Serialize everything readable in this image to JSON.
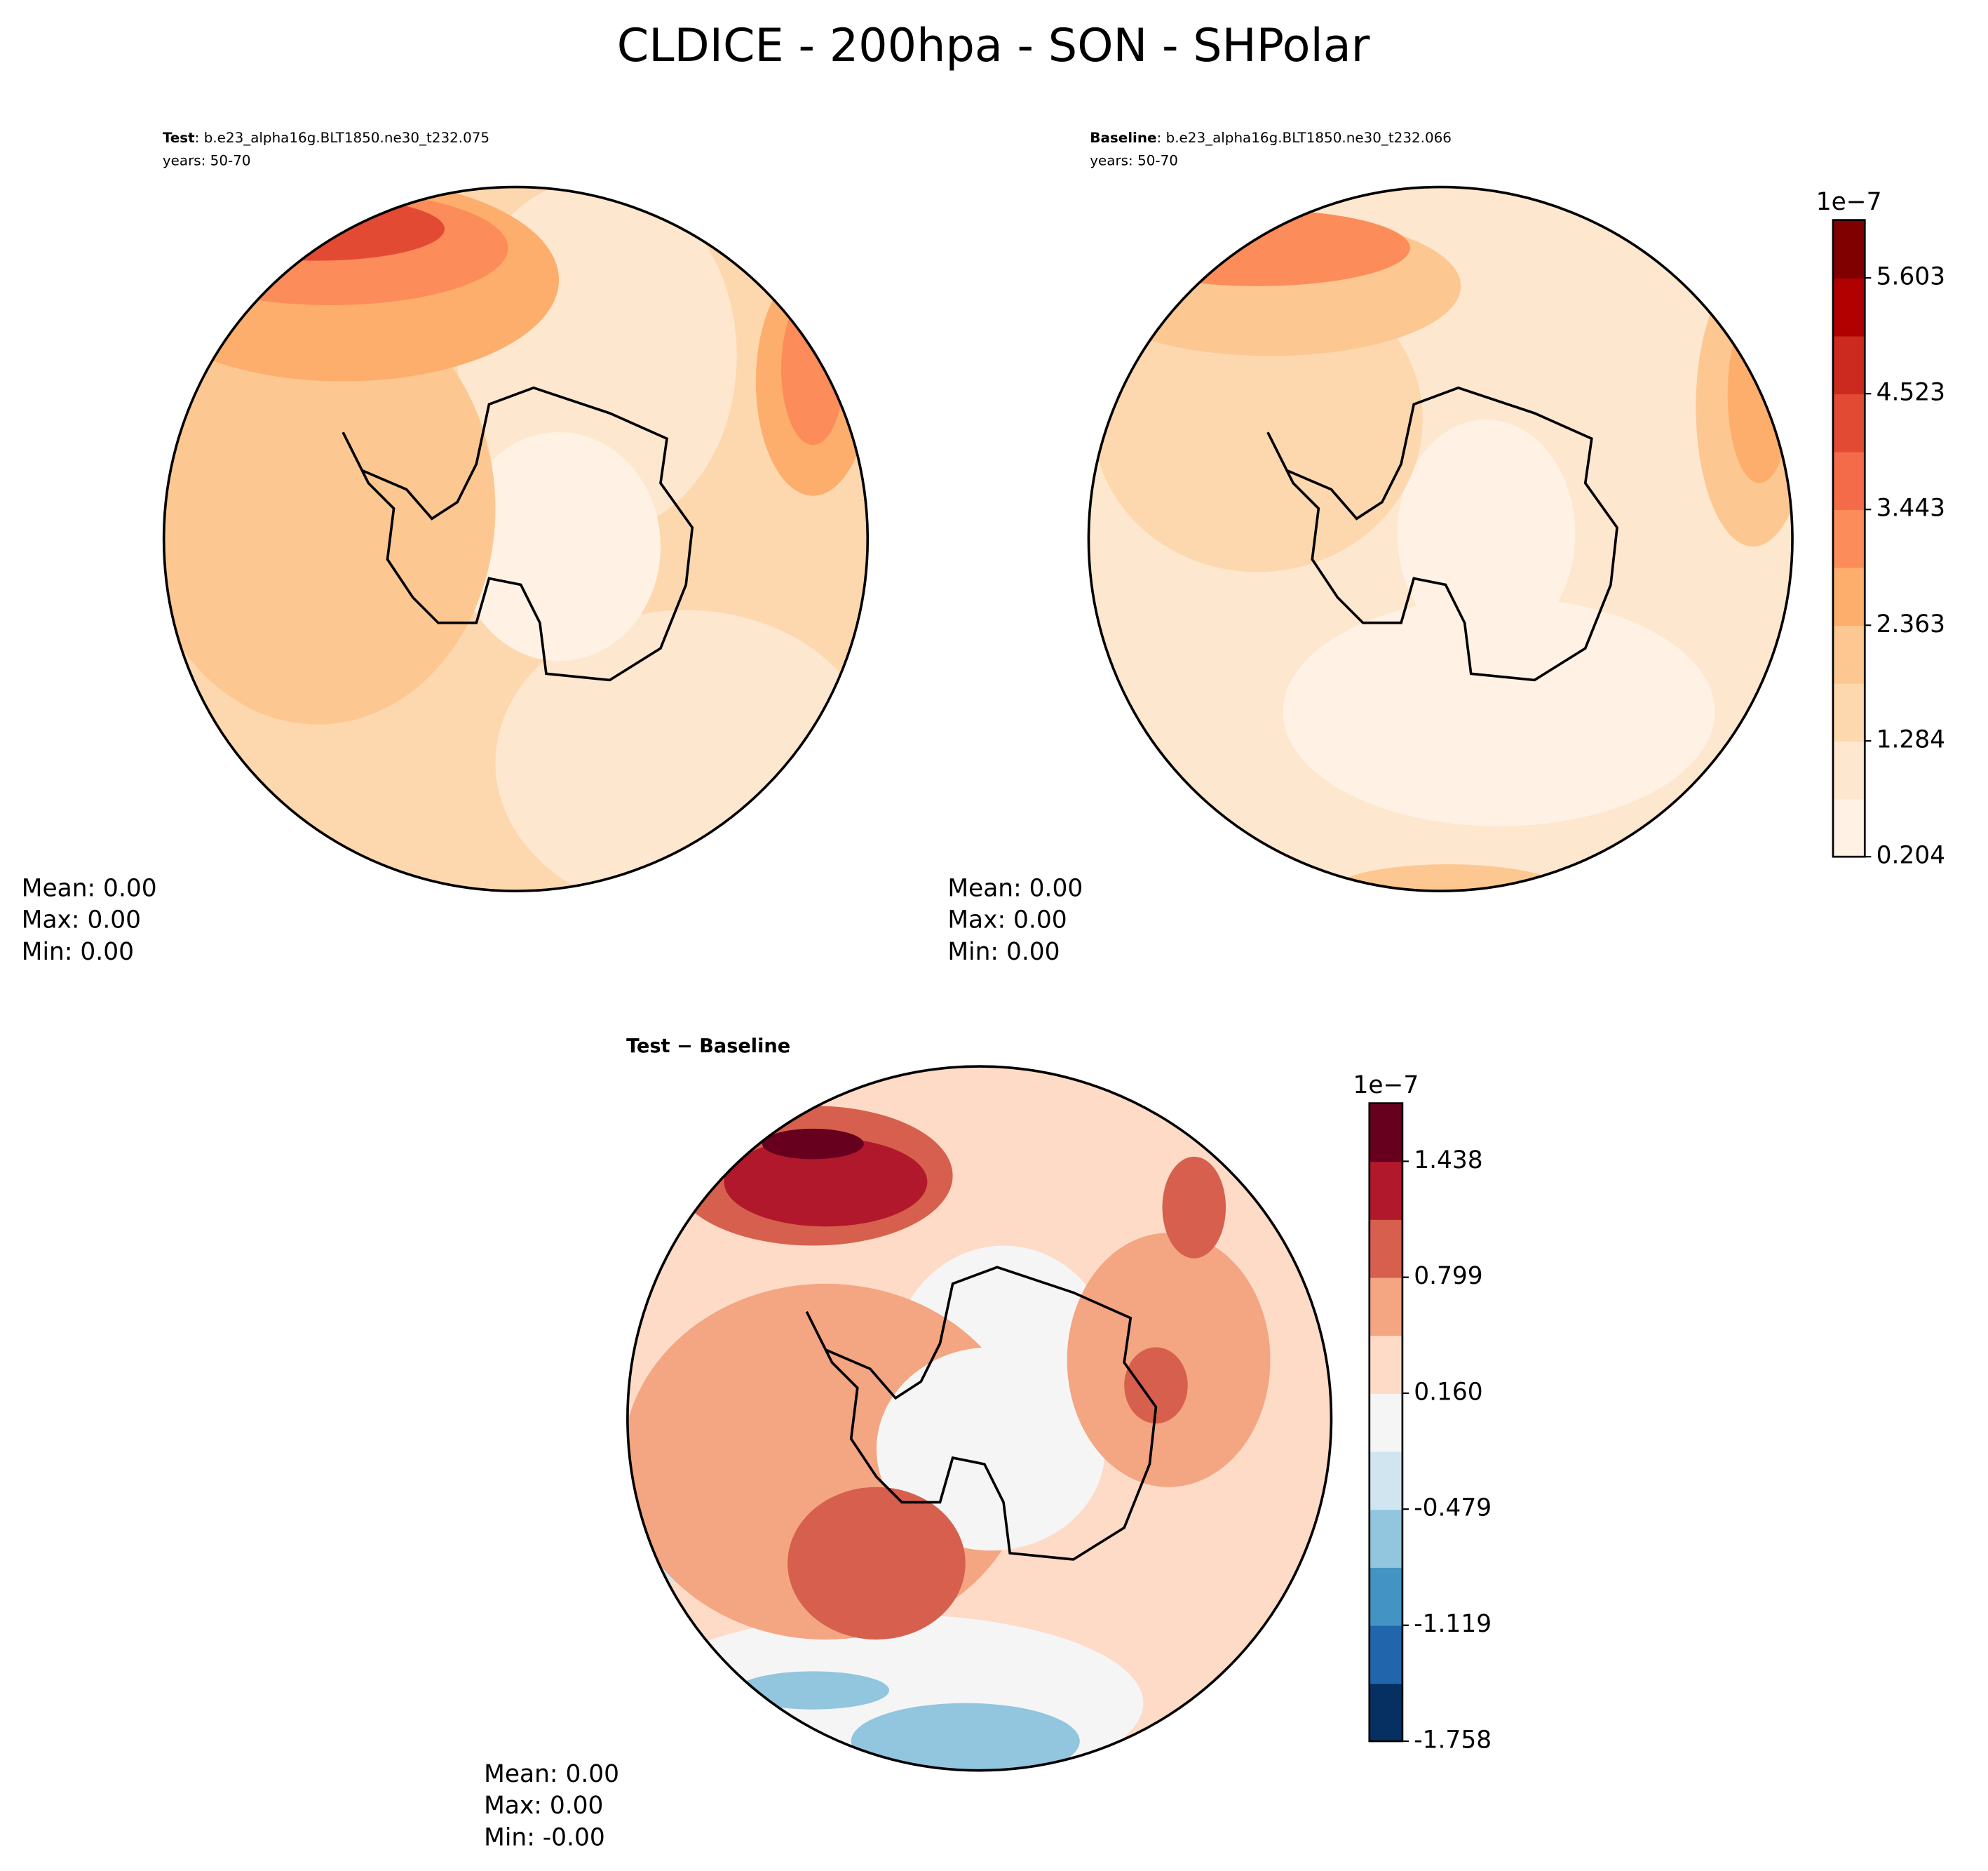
{
  "chart_data": [
    {
      "type": "contour-map",
      "title": "CLDICE - 200hpa - SON - SHPolar",
      "label": "Test",
      "text": ": b.e23_alpha16g.BLT1850.ne30_t232.075",
      "years": "years: 50-70",
      "stats": [
        "Mean:  0.00",
        "Max:  0.00",
        "Min:  0.00"
      ]
    },
    {
      "type": "contour-map",
      "label": "Baseline",
      "text": ": b.e23_alpha16g.BLT1850.ne30_t232.066",
      "years": "years: 50-70",
      "stats": [
        "Mean:  0.00",
        "Max:  0.00",
        "Min:  0.00"
      ],
      "colorbar": {
        "offset": "1e−7",
        "ylim": [
          0.204,
          6.143
        ],
        "yticks": [
          0.204,
          1.284,
          2.363,
          3.443,
          4.523,
          5.603
        ],
        "colors": [
          "#fff2e4",
          "#fee7cf",
          "#fdd8ae",
          "#fdc791",
          "#fdae6c",
          "#fc8c5a",
          "#f36b49",
          "#e34a34",
          "#cc2a1e",
          "#b00000",
          "#800000"
        ]
      }
    },
    {
      "type": "contour-map",
      "label": "Test − Baseline",
      "stats": [
        "Mean:  0.00",
        "Max:  0.00",
        "Min: -0.00"
      ],
      "colorbar": {
        "offset": "1e−7",
        "ylim": [
          -1.758,
          1.758
        ],
        "yticks": [
          -1.758,
          -1.119,
          -0.479,
          {
            "value": 0.16,
            "label": "0.160"
          },
          0.799,
          1.438
        ],
        "colors": [
          "#053061",
          "#2166ac",
          "#4393c3",
          "#92c5de",
          "#d1e5f0",
          "#f5f5f5",
          "#fddbc7",
          "#f4a582",
          "#d6604d",
          "#b2182b",
          "#67001f"
        ]
      }
    }
  ]
}
